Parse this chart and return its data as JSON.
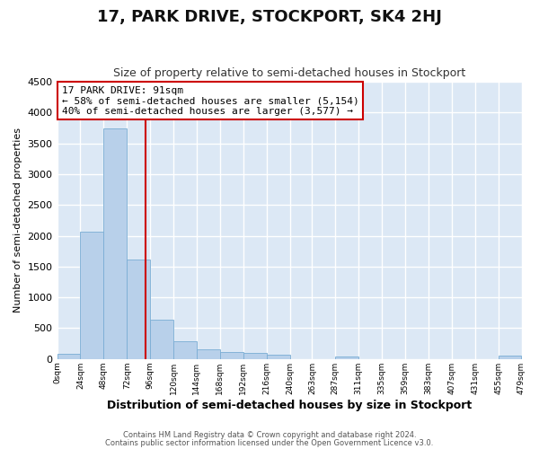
{
  "title": "17, PARK DRIVE, STOCKPORT, SK4 2HJ",
  "subtitle": "Size of property relative to semi-detached houses in Stockport",
  "xlabel": "Distribution of semi-detached houses by size in Stockport",
  "ylabel": "Number of semi-detached properties",
  "bin_edges": [
    0,
    24,
    48,
    72,
    96,
    120,
    144,
    168,
    192,
    216,
    240,
    263,
    287,
    311,
    335,
    359,
    383,
    407,
    431,
    455,
    479
  ],
  "bar_heights": [
    80,
    2060,
    3750,
    1620,
    640,
    295,
    155,
    115,
    100,
    70,
    0,
    0,
    40,
    0,
    0,
    0,
    0,
    0,
    0,
    50
  ],
  "bar_color": "#b8d0ea",
  "bar_edge_color": "#7aadd4",
  "property_size": 91,
  "vline_color": "#cc0000",
  "annotation_title": "17 PARK DRIVE: 91sqm",
  "annotation_line1": "← 58% of semi-detached houses are smaller (5,154)",
  "annotation_line2": "40% of semi-detached houses are larger (3,577) →",
  "annotation_box_color": "#ffffff",
  "annotation_box_edge": "#cc0000",
  "ylim": [
    0,
    4500
  ],
  "yticks": [
    0,
    500,
    1000,
    1500,
    2000,
    2500,
    3000,
    3500,
    4000,
    4500
  ],
  "tick_labels": [
    "0sqm",
    "24sqm",
    "48sqm",
    "72sqm",
    "96sqm",
    "120sqm",
    "144sqm",
    "168sqm",
    "192sqm",
    "216sqm",
    "240sqm",
    "263sqm",
    "287sqm",
    "311sqm",
    "335sqm",
    "359sqm",
    "383sqm",
    "407sqm",
    "431sqm",
    "455sqm",
    "479sqm"
  ],
  "footer1": "Contains HM Land Registry data © Crown copyright and database right 2024.",
  "footer2": "Contains public sector information licensed under the Open Government Licence v3.0.",
  "fig_bg_color": "#ffffff",
  "plot_bg_color": "#dce8f5",
  "grid_color": "#ffffff",
  "title_fontsize": 13,
  "subtitle_fontsize": 9,
  "xlabel_fontsize": 9,
  "ylabel_fontsize": 8
}
